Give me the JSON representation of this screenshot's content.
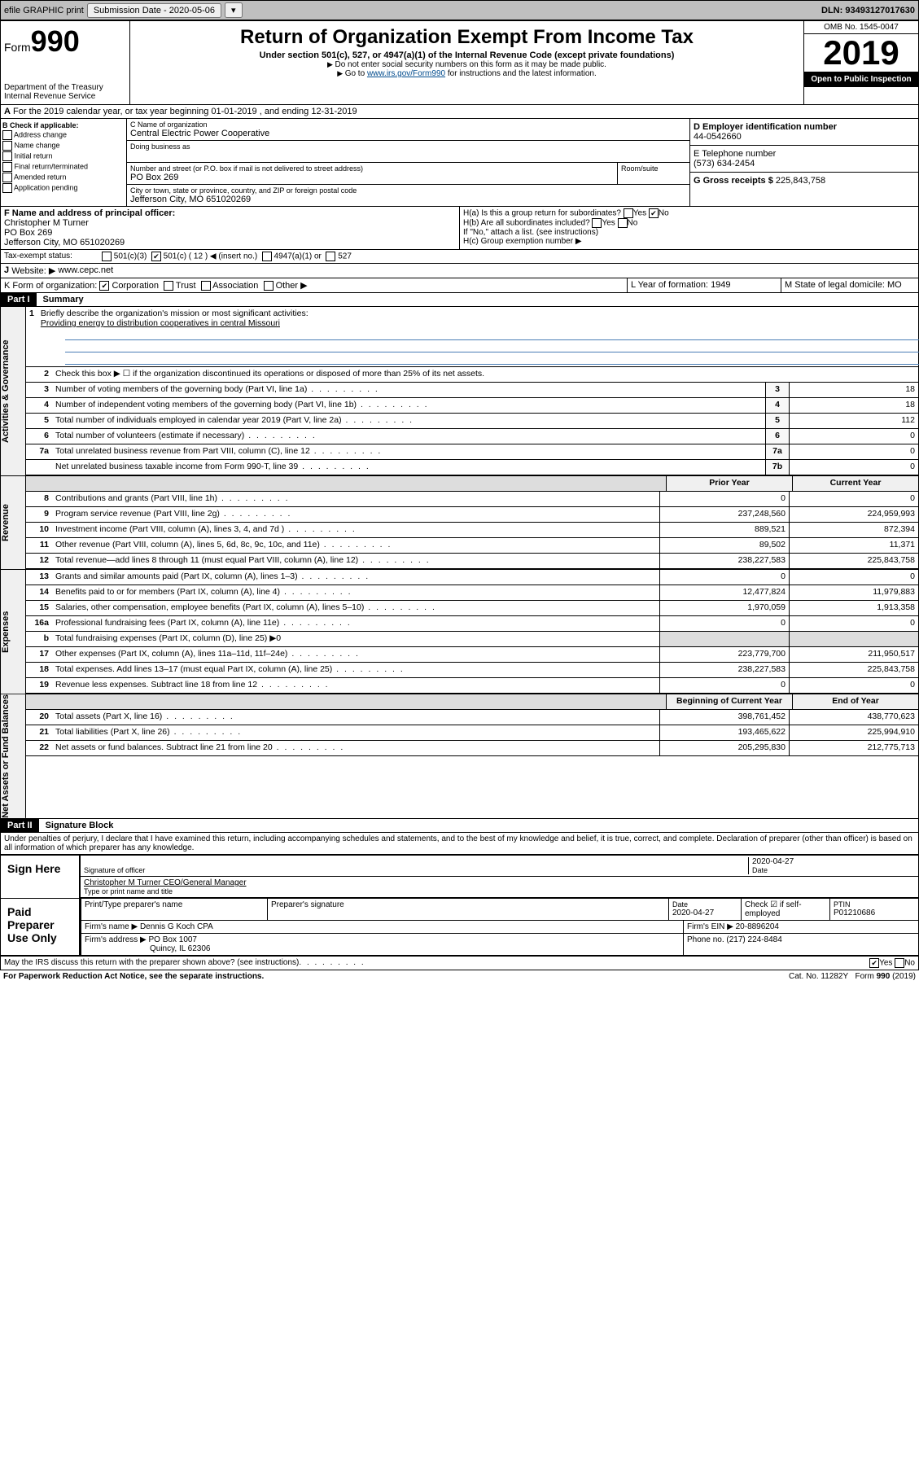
{
  "top": {
    "efile": "efile GRAPHIC print",
    "sub_date_lbl": "Submission Date - ",
    "sub_date": "2020-05-06",
    "dln": "DLN: 93493127017630"
  },
  "hdr": {
    "form": "Form",
    "form_no": "990",
    "dept": "Department of the Treasury\nInternal Revenue Service",
    "title": "Return of Organization Exempt From Income Tax",
    "subtitle": "Under section 501(c), 527, or 4947(a)(1) of the Internal Revenue Code (except private foundations)",
    "note1": "Do not enter social security numbers on this form as it may be made public.",
    "note2_a": "Go to ",
    "note2_link": "www.irs.gov/Form990",
    "note2_b": " for instructions and the latest information.",
    "omb": "OMB No. 1545-0047",
    "year": "2019",
    "open": "Open to Public Inspection"
  },
  "a_line": "For the 2019 calendar year, or tax year beginning 01-01-2019   , and ending 12-31-2019",
  "b": {
    "hdr": "B Check if applicable:",
    "items": [
      "Address change",
      "Name change",
      "Initial return",
      "Final return/terminated",
      "Amended return",
      "Application pending"
    ]
  },
  "c": {
    "name_lbl": "C Name of organization",
    "name": "Central Electric Power Cooperative",
    "dba_lbl": "Doing business as",
    "addr_lbl": "Number and street (or P.O. box if mail is not delivered to street address)",
    "addr": "PO Box 269",
    "room_lbl": "Room/suite",
    "city_lbl": "City or town, state or province, country, and ZIP or foreign postal code",
    "city": "Jefferson City, MO  651020269"
  },
  "d": {
    "lbl": "D Employer identification number",
    "val": "44-0542660"
  },
  "e": {
    "lbl": "E Telephone number",
    "val": "(573) 634-2454"
  },
  "g": {
    "lbl": "G Gross receipts $",
    "val": "225,843,758"
  },
  "f": {
    "lbl": "F  Name and address of principal officer:",
    "name": "Christopher M Turner",
    "addr": "PO Box 269",
    "city": "Jefferson City, MO  651020269"
  },
  "h": {
    "a": "H(a)  Is this a group return for subordinates?",
    "b": "H(b)  Are all subordinates included?",
    "b_note": "If \"No,\" attach a list. (see instructions)",
    "c": "H(c)  Group exemption number ▶"
  },
  "tax_status": "Tax-exempt status:",
  "tax_opts": [
    "501(c)(3)",
    "501(c) ( 12 ) ◀ (insert no.)",
    "4947(a)(1) or",
    "527"
  ],
  "j": {
    "lbl": "Website: ▶",
    "val": "www.cepc.net"
  },
  "k": "K Form of organization:",
  "k_opts": [
    "Corporation",
    "Trust",
    "Association",
    "Other ▶"
  ],
  "l": {
    "lbl": "L Year of formation:",
    "val": "1949"
  },
  "m": {
    "lbl": "M State of legal domicile:",
    "val": "MO"
  },
  "part1": {
    "hdr": "Part I",
    "title": "Summary"
  },
  "mission_lbl": "Briefly describe the organization's mission or most significant activities:",
  "mission": "Providing energy to distribution cooperatives in central Missouri",
  "line2": "Check this box ▶ ☐ if the organization discontinued its operations or disposed of more than 25% of its net assets.",
  "sections": [
    {
      "tab": "Activities & Governance",
      "rows": [
        {
          "n": "3",
          "d": "Number of voting members of the governing body (Part VI, line 1a)",
          "b": "3",
          "v": "18"
        },
        {
          "n": "4",
          "d": "Number of independent voting members of the governing body (Part VI, line 1b)",
          "b": "4",
          "v": "18"
        },
        {
          "n": "5",
          "d": "Total number of individuals employed in calendar year 2019 (Part V, line 2a)",
          "b": "5",
          "v": "112"
        },
        {
          "n": "6",
          "d": "Total number of volunteers (estimate if necessary)",
          "b": "6",
          "v": "0"
        },
        {
          "n": "7a",
          "d": "Total unrelated business revenue from Part VIII, column (C), line 12",
          "b": "7a",
          "v": "0"
        },
        {
          "n": "",
          "d": "Net unrelated business taxable income from Form 990-T, line 39",
          "b": "7b",
          "v": "0"
        }
      ]
    },
    {
      "tab": "Revenue",
      "hdr": [
        "Prior Year",
        "Current Year"
      ],
      "rows": [
        {
          "n": "8",
          "d": "Contributions and grants (Part VIII, line 1h)",
          "p": "0",
          "c": "0"
        },
        {
          "n": "9",
          "d": "Program service revenue (Part VIII, line 2g)",
          "p": "237,248,560",
          "c": "224,959,993"
        },
        {
          "n": "10",
          "d": "Investment income (Part VIII, column (A), lines 3, 4, and 7d )",
          "p": "889,521",
          "c": "872,394"
        },
        {
          "n": "11",
          "d": "Other revenue (Part VIII, column (A), lines 5, 6d, 8c, 9c, 10c, and 11e)",
          "p": "89,502",
          "c": "11,371"
        },
        {
          "n": "12",
          "d": "Total revenue—add lines 8 through 11 (must equal Part VIII, column (A), line 12)",
          "p": "238,227,583",
          "c": "225,843,758"
        }
      ]
    },
    {
      "tab": "Expenses",
      "rows": [
        {
          "n": "13",
          "d": "Grants and similar amounts paid (Part IX, column (A), lines 1–3)",
          "p": "0",
          "c": "0"
        },
        {
          "n": "14",
          "d": "Benefits paid to or for members (Part IX, column (A), line 4)",
          "p": "12,477,824",
          "c": "11,979,883"
        },
        {
          "n": "15",
          "d": "Salaries, other compensation, employee benefits (Part IX, column (A), lines 5–10)",
          "p": "1,970,059",
          "c": "1,913,358"
        },
        {
          "n": "16a",
          "d": "Professional fundraising fees (Part IX, column (A), line 11e)",
          "p": "0",
          "c": "0"
        },
        {
          "n": "b",
          "d": "Total fundraising expenses (Part IX, column (D), line 25) ▶0",
          "p": "",
          "c": "",
          "gray": true
        },
        {
          "n": "17",
          "d": "Other expenses (Part IX, column (A), lines 11a–11d, 11f–24e)",
          "p": "223,779,700",
          "c": "211,950,517"
        },
        {
          "n": "18",
          "d": "Total expenses. Add lines 13–17 (must equal Part IX, column (A), line 25)",
          "p": "238,227,583",
          "c": "225,843,758"
        },
        {
          "n": "19",
          "d": "Revenue less expenses. Subtract line 18 from line 12",
          "p": "0",
          "c": "0"
        }
      ]
    },
    {
      "tab": "Net Assets or Fund Balances",
      "hdr": [
        "Beginning of Current Year",
        "End of Year"
      ],
      "rows": [
        {
          "n": "20",
          "d": "Total assets (Part X, line 16)",
          "p": "398,761,452",
          "c": "438,770,623"
        },
        {
          "n": "21",
          "d": "Total liabilities (Part X, line 26)",
          "p": "193,465,622",
          "c": "225,994,910"
        },
        {
          "n": "22",
          "d": "Net assets or fund balances. Subtract line 21 from line 20",
          "p": "205,295,830",
          "c": "212,775,713"
        }
      ]
    }
  ],
  "part2": {
    "hdr": "Part II",
    "title": "Signature Block"
  },
  "perjury": "Under penalties of perjury, I declare that I have examined this return, including accompanying schedules and statements, and to the best of my knowledge and belief, it is true, correct, and complete. Declaration of preparer (other than officer) is based on all information of which preparer has any knowledge.",
  "sign": {
    "lbl": "Sign Here",
    "sig_lbl": "Signature of officer",
    "date": "2020-04-27",
    "date_lbl": "Date",
    "name": "Christopher M Turner CEO/General Manager",
    "name_lbl": "Type or print name and title"
  },
  "paid": {
    "lbl": "Paid Preparer Use Only",
    "col_lbls": [
      "Print/Type preparer's name",
      "Preparer's signature",
      "Date",
      "Check ☑ if self-employed",
      "PTIN"
    ],
    "date": "2020-04-27",
    "ptin": "P01210686",
    "firm_lbl": "Firm's name    ▶",
    "firm": "Dennis G Koch CPA",
    "ein_lbl": "Firm's EIN ▶",
    "ein": "20-8896204",
    "addr_lbl": "Firm's address ▶",
    "addr": "PO Box 1007",
    "city": "Quincy, IL  62306",
    "phone_lbl": "Phone no.",
    "phone": "(217) 224-8484"
  },
  "discuss": "May the IRS discuss this return with the preparer shown above? (see instructions)",
  "bottom": {
    "pra": "For Paperwork Reduction Act Notice, see the separate instructions.",
    "cat": "Cat. No. 11282Y",
    "form": "Form 990 (2019)"
  }
}
